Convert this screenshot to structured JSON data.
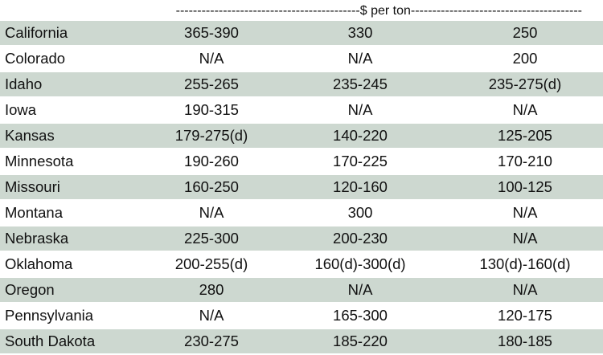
{
  "header": {
    "label": "-------------------------------------------$ per ton----------------------------------------"
  },
  "rows": [
    {
      "state": "California",
      "v1": "365-390",
      "v2": "330",
      "v3": "250"
    },
    {
      "state": "Colorado",
      "v1": "N/A",
      "v2": "N/A",
      "v3": "200"
    },
    {
      "state": "Idaho",
      "v1": "255-265",
      "v2": "235-245",
      "v3": "235-275(d)"
    },
    {
      "state": "Iowa",
      "v1": "190-315",
      "v2": "N/A",
      "v3": "N/A"
    },
    {
      "state": "Kansas",
      "v1": "179-275(d)",
      "v2": "140-220",
      "v3": "125-205"
    },
    {
      "state": "Minnesota",
      "v1": "190-260",
      "v2": "170-225",
      "v3": "170-210"
    },
    {
      "state": "Missouri",
      "v1": "160-250",
      "v2": "120-160",
      "v3": "100-125"
    },
    {
      "state": "Montana",
      "v1": "N/A",
      "v2": "300",
      "v3": "N/A"
    },
    {
      "state": "Nebraska",
      "v1": "225-300",
      "v2": "200-230",
      "v3": "N/A"
    },
    {
      "state": "Oklahoma",
      "v1": "200-255(d)",
      "v2": "160(d)-300(d)",
      "v3": "130(d)-160(d)"
    },
    {
      "state": "Oregon",
      "v1": "280",
      "v2": "N/A",
      "v3": "N/A"
    },
    {
      "state": "Pennsylvania",
      "v1": "N/A",
      "v2": "165-300",
      "v3": "120-175"
    },
    {
      "state": "South Dakota",
      "v1": "230-275",
      "v2": "185-220",
      "v3": "180-185"
    }
  ],
  "colors": {
    "band": "#cdd8d0",
    "text": "#111111"
  }
}
